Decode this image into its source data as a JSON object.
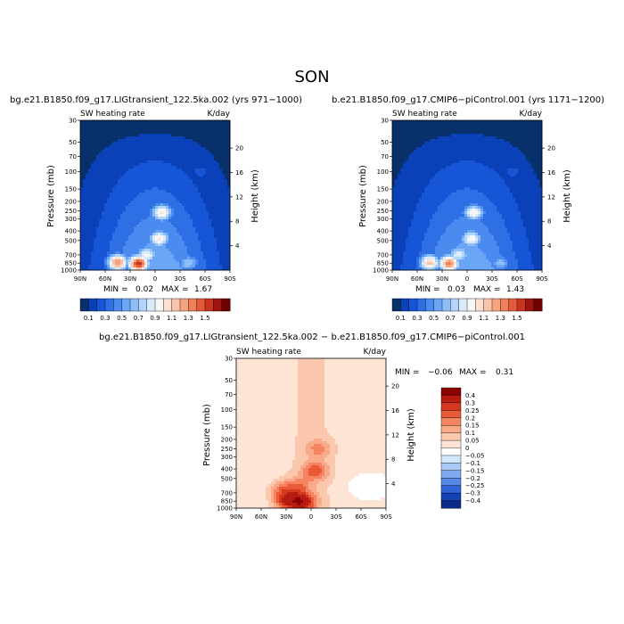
{
  "figure_title": "SON",
  "diff_title": "bg.e21.B1850.f09_g17.LIGtransient_122.5ka.002 − b.e21.B1850.f09_g17.CMIP6−piControl.001",
  "chart_data": [
    {
      "type": "heatmap",
      "title": "bg.e21.B1850.f09_g17.LIGtransient_122.5ka.002 (yrs 971−1000)",
      "variable": "SW heating rate",
      "units": "K/day",
      "ylabel": "Pressure  (mb)",
      "ylabel_right": "Height  (km)",
      "x_ticks": [
        "90N",
        "60N",
        "30N",
        "0",
        "30S",
        "60S",
        "90S"
      ],
      "y_ticks": [
        "30",
        "50",
        "70",
        "100",
        "150",
        "200",
        "250",
        "300",
        "400",
        "500",
        "700",
        "850",
        "1000"
      ],
      "height_ticks": [
        "20",
        "16",
        "12",
        "8",
        "4"
      ],
      "min_label": "MIN =",
      "min": "0.02",
      "max_label": "MAX =",
      "max": "1.67",
      "colorbar_levels": [
        "0.1",
        "0.3",
        "0.5",
        "0.7",
        "0.9",
        "1.1",
        "1.3",
        "1.5"
      ],
      "colormap": [
        "#08306b",
        "#0a40b8",
        "#1656d6",
        "#2f6fe6",
        "#4b8bf0",
        "#6aa5f6",
        "#8cbff9",
        "#b3d5fb",
        "#d9ebfd",
        "#f6f6f6",
        "#fde0d0",
        "#fbc4a8",
        "#f7a380",
        "#f0805a",
        "#e25a3a",
        "#c8341e",
        "#a01410",
        "#6e0000"
      ],
      "features": [
        {
          "lat": -55,
          "p": 100,
          "value": 0.25
        },
        {
          "lat": -8,
          "p": 260,
          "value": 1.05
        },
        {
          "lat": -5,
          "p": 480,
          "value": 1.05
        },
        {
          "lat": 10,
          "p": 700,
          "value": 0.95
        },
        {
          "lat": 20,
          "p": 860,
          "value": 1.55
        },
        {
          "lat": 45,
          "p": 840,
          "value": 1.3
        },
        {
          "lat": -40,
          "p": 850,
          "value": 0.7
        }
      ]
    },
    {
      "type": "heatmap",
      "title": "b.e21.B1850.f09_g17.CMIP6−piControl.001 (yrs 1171−1200)",
      "variable": "SW heating rate",
      "units": "K/day",
      "ylabel": "Pressure  (mb)",
      "ylabel_right": "Height  (km)",
      "x_ticks": [
        "90N",
        "60N",
        "30N",
        "0",
        "30S",
        "60S",
        "90S"
      ],
      "y_ticks": [
        "30",
        "50",
        "70",
        "100",
        "150",
        "200",
        "250",
        "300",
        "400",
        "500",
        "700",
        "850",
        "1000"
      ],
      "height_ticks": [
        "20",
        "16",
        "12",
        "8",
        "4"
      ],
      "min_label": "MIN =",
      "min": "0.03",
      "max_label": "MAX =",
      "max": "1.43",
      "colorbar_levels": [
        "0.1",
        "0.3",
        "0.5",
        "0.7",
        "0.9",
        "1.1",
        "1.3",
        "1.5"
      ],
      "colormap": [
        "#08306b",
        "#0a40b8",
        "#1656d6",
        "#2f6fe6",
        "#4b8bf0",
        "#6aa5f6",
        "#8cbff9",
        "#b3d5fb",
        "#d9ebfd",
        "#f6f6f6",
        "#fde0d0",
        "#fbc4a8",
        "#f7a380",
        "#f0805a",
        "#e25a3a",
        "#c8341e",
        "#a01410",
        "#6e0000"
      ],
      "features": [
        {
          "lat": -55,
          "p": 100,
          "value": 0.25
        },
        {
          "lat": -8,
          "p": 260,
          "value": 1.0
        },
        {
          "lat": -5,
          "p": 480,
          "value": 1.0
        },
        {
          "lat": 10,
          "p": 700,
          "value": 0.9
        },
        {
          "lat": 22,
          "p": 860,
          "value": 1.35
        },
        {
          "lat": 45,
          "p": 840,
          "value": 1.15
        },
        {
          "lat": -40,
          "p": 850,
          "value": 0.65
        }
      ]
    },
    {
      "type": "heatmap",
      "title": "bg.e21.B1850.f09_g17.LIGtransient_122.5ka.002 − b.e21.B1850.f09_g17.CMIP6−piControl.001",
      "variable": "SW heating rate",
      "units": "K/day",
      "ylabel": "Pressure  (mb)",
      "ylabel_right": "Height  (km)",
      "x_ticks": [
        "90N",
        "60N",
        "30N",
        "0",
        "30S",
        "60S",
        "90S"
      ],
      "y_ticks": [
        "30",
        "50",
        "70",
        "100",
        "150",
        "200",
        "250",
        "300",
        "400",
        "500",
        "700",
        "850",
        "1000"
      ],
      "height_ticks": [
        "20",
        "16",
        "12",
        "8",
        "4"
      ],
      "min_label": "MIN =",
      "min": "−0.06",
      "max_label": "MAX =",
      "max": "0.31",
      "colorbar_levels": [
        "0.4",
        "0.3",
        "0.25",
        "0.2",
        "0.15",
        "0.1",
        "0.05",
        "0",
        "−0.05",
        "−0.1",
        "−0.15",
        "−0.2",
        "−0.25",
        "−0.3",
        "−0.4"
      ],
      "colormap": [
        "#8b0000",
        "#b81c10",
        "#d6381f",
        "#ea5a36",
        "#f58462",
        "#f9aa88",
        "#fcc8ad",
        "#fde4d4",
        "#ffffff",
        "#d2e6fb",
        "#a9c9f6",
        "#7fa9f0",
        "#5688e6",
        "#2f63d6",
        "#1444b4",
        "#0a2a8a"
      ],
      "features": [
        {
          "lat": -10,
          "p": 250,
          "value": 0.12
        },
        {
          "lat": -5,
          "p": 420,
          "value": 0.18
        },
        {
          "lat": 15,
          "p": 600,
          "value": 0.12
        },
        {
          "lat": 35,
          "p": 650,
          "value": 0.14
        },
        {
          "lat": 10,
          "p": 870,
          "value": 0.3
        },
        {
          "lat": 30,
          "p": 860,
          "value": 0.22
        },
        {
          "lat": -60,
          "p": 600,
          "value": -0.04
        }
      ]
    }
  ]
}
